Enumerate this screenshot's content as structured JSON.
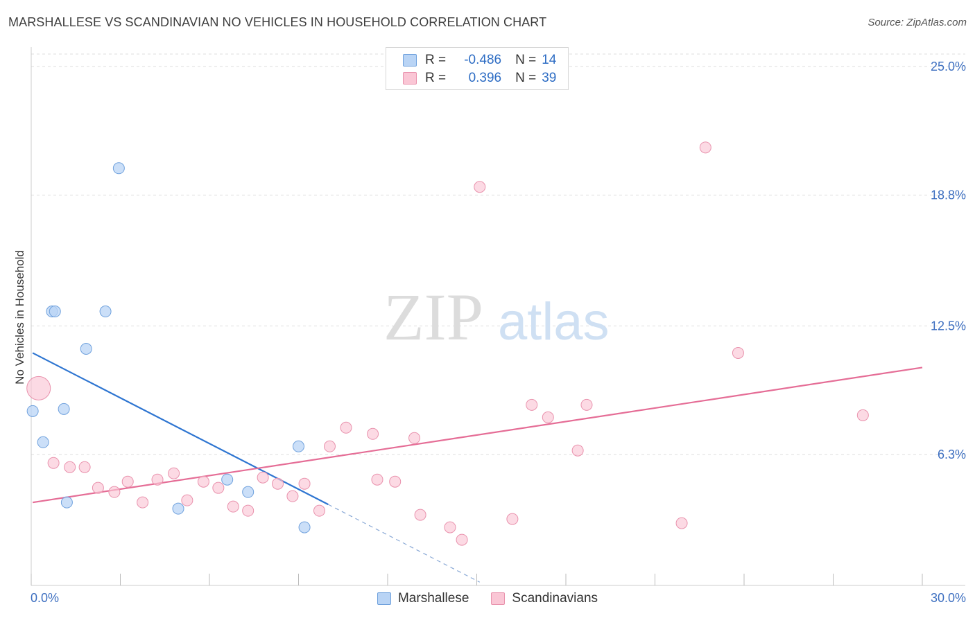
{
  "header": {
    "title": "MARSHALLESE VS SCANDINAVIAN NO VEHICLES IN HOUSEHOLD CORRELATION CHART",
    "source": "Source: ZipAtlas.com"
  },
  "watermark": {
    "zip": "ZIP",
    "atlas": "atlas"
  },
  "legend": {
    "series": [
      {
        "r_label": "R =",
        "r_value": "-0.486",
        "n_label": "N =",
        "n_value": "14"
      },
      {
        "r_label": "R =",
        "r_value": "0.396",
        "n_label": "N =",
        "n_value": "39"
      }
    ]
  },
  "colors": {
    "blue_fill": "#b9d4f5",
    "blue_stroke": "#6fa1dd",
    "blue_line": "#2e75d1",
    "pink_fill": "#fac6d5",
    "pink_stroke": "#e992ad",
    "pink_line": "#e56d96",
    "axis_label": "#3d6fc0",
    "grid": "#dddddd"
  },
  "chart_data": {
    "type": "scatter",
    "title": "MARSHALLESE VS SCANDINAVIAN NO VEHICLES IN HOUSEHOLD CORRELATION CHART",
    "xlabel": "",
    "ylabel": "No Vehicles in Household",
    "xlim": [
      0,
      30
    ],
    "ylim": [
      0,
      25.6
    ],
    "x_tick_labels": [
      {
        "value": 0,
        "label": "0.0%"
      },
      {
        "value": 30,
        "label": "30.0%"
      }
    ],
    "y_tick_labels": [
      {
        "value": 6.3,
        "label": "6.3%"
      },
      {
        "value": 12.5,
        "label": "12.5%"
      },
      {
        "value": 18.8,
        "label": "18.8%"
      },
      {
        "value": 25.0,
        "label": "25.0%"
      }
    ],
    "x_minor_ticks": [
      0,
      3,
      6,
      9,
      12,
      15,
      18,
      21,
      24,
      27,
      30
    ],
    "grid": true,
    "legend_position": "top-center",
    "series": [
      {
        "name": "Marshallese",
        "color": "#b9d4f5",
        "points": [
          {
            "x": 0.05,
            "y": 8.4
          },
          {
            "x": 0.4,
            "y": 6.9
          },
          {
            "x": 0.7,
            "y": 13.2
          },
          {
            "x": 0.8,
            "y": 13.2
          },
          {
            "x": 1.1,
            "y": 8.5
          },
          {
            "x": 1.2,
            "y": 4.0
          },
          {
            "x": 1.85,
            "y": 11.4
          },
          {
            "x": 2.5,
            "y": 13.2
          },
          {
            "x": 2.95,
            "y": 20.1
          },
          {
            "x": 4.95,
            "y": 3.7
          },
          {
            "x": 6.6,
            "y": 5.1
          },
          {
            "x": 7.3,
            "y": 4.5
          },
          {
            "x": 9.0,
            "y": 6.7
          },
          {
            "x": 9.2,
            "y": 2.8
          }
        ],
        "trend": {
          "x0": 0.05,
          "y0": 11.2,
          "x1": 10.0,
          "y1": 3.9,
          "dash_to_x": 15.1
        }
      },
      {
        "name": "Scandinavians",
        "color": "#fac6d5",
        "points": [
          {
            "x": 0.25,
            "y": 9.5,
            "size": "large"
          },
          {
            "x": 0.75,
            "y": 5.9
          },
          {
            "x": 1.3,
            "y": 5.7
          },
          {
            "x": 1.8,
            "y": 5.7
          },
          {
            "x": 2.25,
            "y": 4.7
          },
          {
            "x": 2.8,
            "y": 4.5
          },
          {
            "x": 3.25,
            "y": 5.0
          },
          {
            "x": 3.75,
            "y": 4.0
          },
          {
            "x": 4.25,
            "y": 5.1
          },
          {
            "x": 4.8,
            "y": 5.4
          },
          {
            "x": 5.25,
            "y": 4.1
          },
          {
            "x": 5.8,
            "y": 5.0
          },
          {
            "x": 6.3,
            "y": 4.7
          },
          {
            "x": 6.8,
            "y": 3.8
          },
          {
            "x": 7.3,
            "y": 3.6
          },
          {
            "x": 7.8,
            "y": 5.2
          },
          {
            "x": 8.3,
            "y": 4.9
          },
          {
            "x": 8.8,
            "y": 4.3
          },
          {
            "x": 9.2,
            "y": 4.9
          },
          {
            "x": 9.7,
            "y": 3.6
          },
          {
            "x": 10.05,
            "y": 6.7
          },
          {
            "x": 10.6,
            "y": 7.6
          },
          {
            "x": 11.5,
            "y": 7.3
          },
          {
            "x": 11.65,
            "y": 5.1
          },
          {
            "x": 12.25,
            "y": 5.0
          },
          {
            "x": 12.9,
            "y": 7.1
          },
          {
            "x": 13.1,
            "y": 3.4
          },
          {
            "x": 14.1,
            "y": 2.8
          },
          {
            "x": 14.5,
            "y": 2.2
          },
          {
            "x": 15.1,
            "y": 19.2
          },
          {
            "x": 16.2,
            "y": 3.2
          },
          {
            "x": 16.85,
            "y": 8.7
          },
          {
            "x": 17.4,
            "y": 8.1
          },
          {
            "x": 18.4,
            "y": 6.5
          },
          {
            "x": 18.7,
            "y": 8.7
          },
          {
            "x": 21.9,
            "y": 3.0
          },
          {
            "x": 22.7,
            "y": 21.1
          },
          {
            "x": 23.8,
            "y": 11.2
          },
          {
            "x": 28.0,
            "y": 8.2
          }
        ],
        "trend": {
          "x0": 0.05,
          "y0": 4.0,
          "x1": 30.0,
          "y1": 10.5
        }
      }
    ]
  },
  "bottom_legend": {
    "items": [
      "Marshallese",
      "Scandinavians"
    ]
  }
}
